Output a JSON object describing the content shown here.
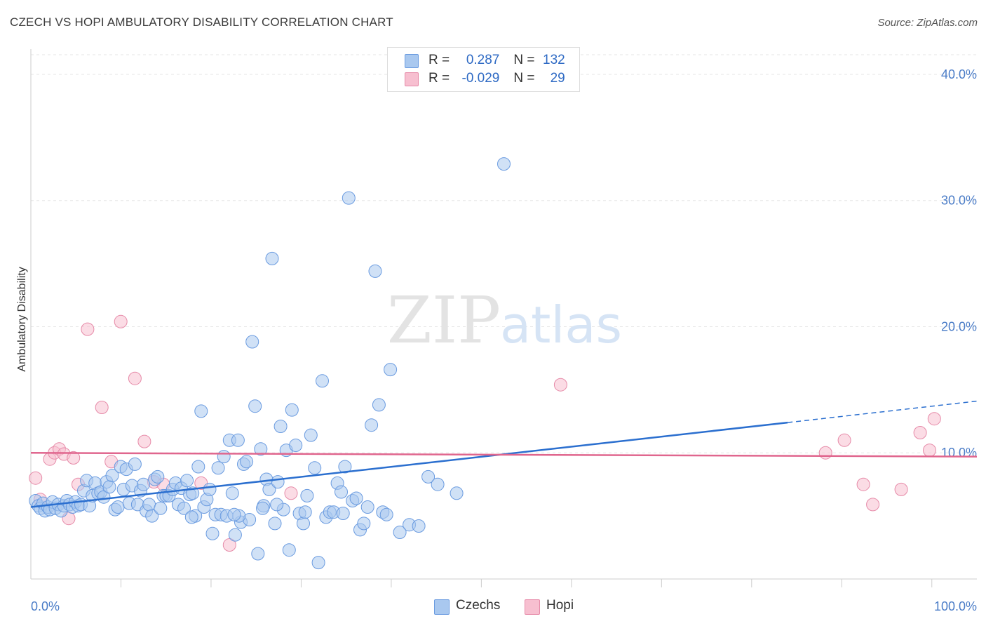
{
  "header": {
    "title": "CZECH VS HOPI AMBULATORY DISABILITY CORRELATION CHART",
    "source": "Source: ZipAtlas.com"
  },
  "watermark": {
    "zip": "ZIP",
    "atlas": "atlas"
  },
  "legend": {
    "czechs": {
      "r_label": "R = ",
      "r_value": "0.287",
      "n_label": "N = ",
      "n_value": "132",
      "color": "#a9c8ef",
      "stroke": "#6a9be0"
    },
    "hopi": {
      "r_label": "R = ",
      "r_value": "-0.029",
      "n_label": "N = ",
      "n_value": "29",
      "color": "#f7bfd0",
      "stroke": "#e68aa8"
    }
  },
  "bottom_legend": {
    "czechs_label": "Czechs",
    "hopi_label": "Hopi"
  },
  "chart_data": {
    "type": "scatter",
    "title": "CZECH VS HOPI AMBULATORY DISABILITY CORRELATION CHART",
    "xlabel": "",
    "ylabel": "Ambulatory Disability",
    "xlim": [
      0,
      100
    ],
    "ylim": [
      0,
      42
    ],
    "x_tick_labels": [
      "0.0%",
      "100.0%"
    ],
    "y_ticks": [
      10,
      20,
      30,
      40
    ],
    "y_tick_labels": [
      "10.0%",
      "20.0%",
      "30.0%",
      "40.0%"
    ],
    "grid": true,
    "series": [
      {
        "name": "Czechs",
        "color": "#6a9be0",
        "fill": "#a9c8ef",
        "trend": {
          "x0": 0,
          "y0": 5.7,
          "x1": 80,
          "y1": 12.4,
          "dash_to_x": 100,
          "dash_to_y": 14.1,
          "color": "#2b6fcf"
        },
        "points": [
          [
            0.5,
            6.2
          ],
          [
            0.8,
            5.8
          ],
          [
            1.0,
            5.6
          ],
          [
            1.3,
            6.0
          ],
          [
            1.5,
            5.4
          ],
          [
            1.8,
            5.7
          ],
          [
            2.0,
            5.5
          ],
          [
            2.3,
            6.1
          ],
          [
            2.6,
            5.6
          ],
          [
            2.9,
            5.9
          ],
          [
            3.2,
            5.4
          ],
          [
            3.5,
            5.8
          ],
          [
            3.8,
            6.2
          ],
          [
            4.1,
            5.9
          ],
          [
            4.4,
            5.7
          ],
          [
            4.7,
            6.1
          ],
          [
            5.0,
            5.8
          ],
          [
            5.3,
            5.9
          ],
          [
            5.6,
            7.0
          ],
          [
            5.9,
            7.8
          ],
          [
            6.2,
            5.8
          ],
          [
            6.5,
            6.6
          ],
          [
            6.8,
            7.6
          ],
          [
            7.1,
            6.8
          ],
          [
            7.4,
            6.9
          ],
          [
            7.7,
            6.5
          ],
          [
            8.0,
            7.7
          ],
          [
            8.3,
            7.3
          ],
          [
            8.6,
            8.2
          ],
          [
            8.9,
            5.5
          ],
          [
            9.2,
            5.7
          ],
          [
            9.5,
            8.9
          ],
          [
            9.8,
            7.1
          ],
          [
            10.1,
            8.7
          ],
          [
            10.4,
            6.0
          ],
          [
            10.7,
            7.4
          ],
          [
            11.0,
            9.1
          ],
          [
            11.3,
            5.9
          ],
          [
            11.6,
            7.0
          ],
          [
            11.9,
            7.5
          ],
          [
            12.2,
            5.4
          ],
          [
            12.5,
            5.9
          ],
          [
            12.8,
            5.0
          ],
          [
            13.1,
            7.9
          ],
          [
            13.4,
            8.1
          ],
          [
            13.7,
            5.6
          ],
          [
            14.0,
            6.6
          ],
          [
            14.3,
            6.6
          ],
          [
            14.6,
            6.6
          ],
          [
            15.0,
            7.1
          ],
          [
            15.3,
            7.6
          ],
          [
            15.6,
            5.9
          ],
          [
            15.9,
            7.2
          ],
          [
            16.2,
            5.6
          ],
          [
            16.5,
            7.8
          ],
          [
            16.8,
            6.7
          ],
          [
            17.1,
            6.8
          ],
          [
            17.4,
            5.0
          ],
          [
            17.7,
            8.9
          ],
          [
            18.0,
            13.3
          ],
          [
            18.3,
            5.7
          ],
          [
            18.6,
            6.3
          ],
          [
            18.9,
            7.1
          ],
          [
            19.2,
            3.6
          ],
          [
            19.5,
            5.1
          ],
          [
            19.8,
            8.8
          ],
          [
            20.1,
            5.1
          ],
          [
            20.4,
            9.7
          ],
          [
            20.7,
            5.0
          ],
          [
            21.0,
            11.0
          ],
          [
            21.3,
            6.8
          ],
          [
            21.6,
            3.5
          ],
          [
            21.9,
            11.0
          ],
          [
            22.2,
            4.5
          ],
          [
            22.5,
            9.1
          ],
          [
            22.8,
            9.3
          ],
          [
            23.1,
            4.7
          ],
          [
            23.4,
            18.8
          ],
          [
            23.7,
            13.7
          ],
          [
            24.0,
            2.0
          ],
          [
            24.3,
            10.3
          ],
          [
            24.6,
            5.8
          ],
          [
            24.9,
            7.9
          ],
          [
            25.2,
            7.1
          ],
          [
            25.5,
            25.4
          ],
          [
            25.8,
            4.4
          ],
          [
            26.1,
            7.7
          ],
          [
            26.4,
            12.1
          ],
          [
            26.7,
            5.5
          ],
          [
            27.0,
            10.2
          ],
          [
            27.3,
            2.3
          ],
          [
            27.6,
            13.4
          ],
          [
            28.0,
            10.6
          ],
          [
            28.4,
            5.2
          ],
          [
            28.8,
            4.4
          ],
          [
            29.2,
            6.6
          ],
          [
            29.6,
            11.4
          ],
          [
            30.0,
            8.8
          ],
          [
            30.4,
            1.3
          ],
          [
            30.8,
            15.7
          ],
          [
            31.2,
            4.9
          ],
          [
            31.6,
            5.3
          ],
          [
            32.0,
            5.3
          ],
          [
            32.4,
            7.6
          ],
          [
            32.8,
            6.9
          ],
          [
            33.2,
            8.9
          ],
          [
            33.6,
            30.2
          ],
          [
            34.0,
            6.2
          ],
          [
            34.4,
            6.4
          ],
          [
            34.8,
            3.9
          ],
          [
            35.2,
            4.4
          ],
          [
            35.6,
            5.7
          ],
          [
            36.0,
            12.2
          ],
          [
            36.4,
            24.4
          ],
          [
            36.8,
            13.8
          ],
          [
            37.2,
            5.3
          ],
          [
            37.6,
            5.1
          ],
          [
            38.0,
            16.6
          ],
          [
            39.0,
            3.7
          ],
          [
            40.0,
            4.3
          ],
          [
            41.0,
            4.2
          ],
          [
            42.0,
            8.1
          ],
          [
            43.0,
            7.5
          ],
          [
            45.0,
            6.8
          ],
          [
            50.0,
            32.9
          ],
          [
            29.0,
            5.3
          ],
          [
            22.0,
            5.0
          ],
          [
            17.0,
            4.9
          ],
          [
            26.0,
            5.9
          ],
          [
            33.0,
            5.2
          ],
          [
            24.5,
            5.6
          ],
          [
            21.5,
            5.1
          ]
        ]
      },
      {
        "name": "Hopi",
        "color": "#e68aa8",
        "fill": "#f7bfd0",
        "trend": {
          "x0": 0,
          "y0": 10.0,
          "x1": 100,
          "y1": 9.7,
          "color": "#e0668e"
        },
        "points": [
          [
            0.5,
            8.0
          ],
          [
            1.0,
            6.3
          ],
          [
            2.0,
            9.5
          ],
          [
            2.5,
            10.0
          ],
          [
            3.0,
            10.3
          ],
          [
            3.5,
            9.9
          ],
          [
            4.0,
            4.8
          ],
          [
            4.5,
            9.6
          ],
          [
            5.0,
            7.5
          ],
          [
            6.0,
            19.8
          ],
          [
            7.5,
            13.6
          ],
          [
            8.5,
            9.3
          ],
          [
            9.5,
            20.4
          ],
          [
            11.0,
            15.9
          ],
          [
            12.0,
            10.9
          ],
          [
            13.0,
            7.7
          ],
          [
            14.0,
            7.5
          ],
          [
            18.0,
            7.6
          ],
          [
            21.0,
            2.7
          ],
          [
            27.5,
            6.8
          ],
          [
            56.0,
            15.4
          ],
          [
            84.0,
            10.0
          ],
          [
            86.0,
            11.0
          ],
          [
            88.0,
            7.5
          ],
          [
            89.0,
            5.9
          ],
          [
            92.0,
            7.1
          ],
          [
            94.0,
            11.6
          ],
          [
            95.0,
            10.2
          ],
          [
            95.5,
            12.7
          ]
        ]
      }
    ]
  }
}
